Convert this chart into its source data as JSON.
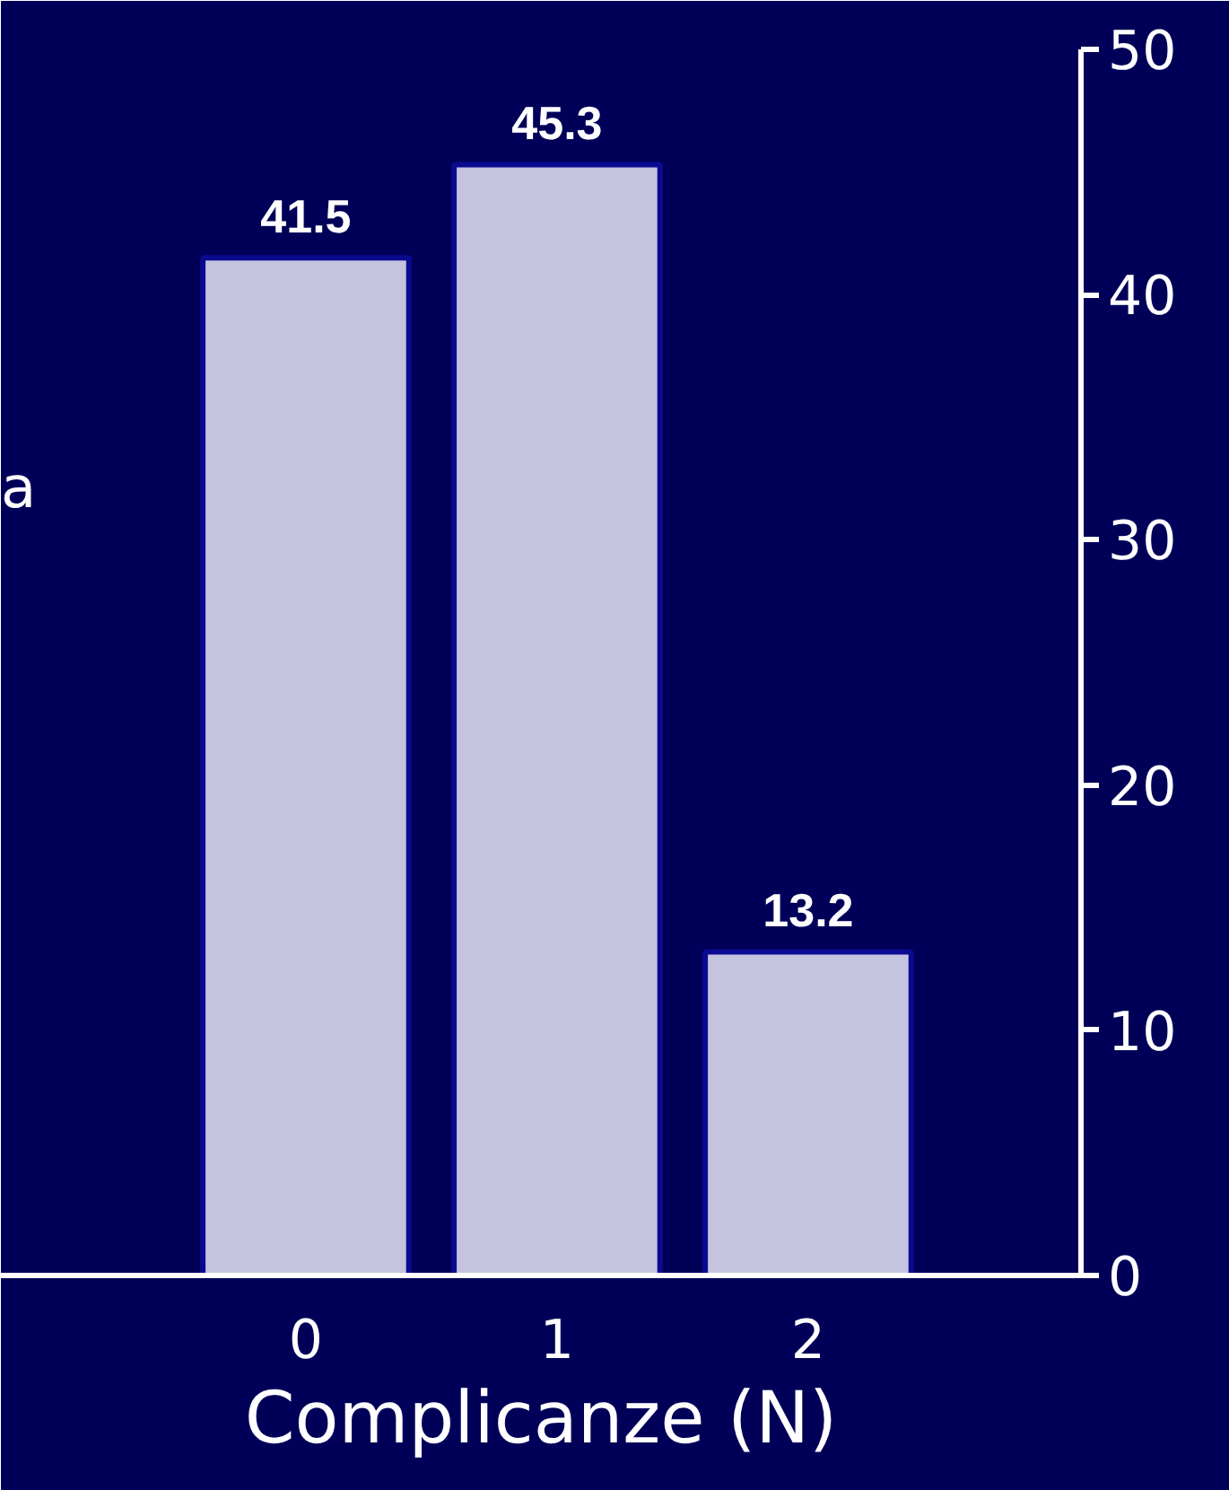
{
  "chart_data": {
    "type": "bar",
    "xlabel": "Complicanze (N)",
    "categories": [
      "0",
      "1",
      "2"
    ],
    "values": [
      41.5,
      45.3,
      13.2
    ],
    "color": "#c4c4e0",
    "ylim": [
      0,
      50
    ],
    "yticks": [
      0,
      10,
      20,
      30,
      40,
      50
    ],
    "data_labels": true,
    "grid": false,
    "annotations": [
      "a"
    ]
  }
}
